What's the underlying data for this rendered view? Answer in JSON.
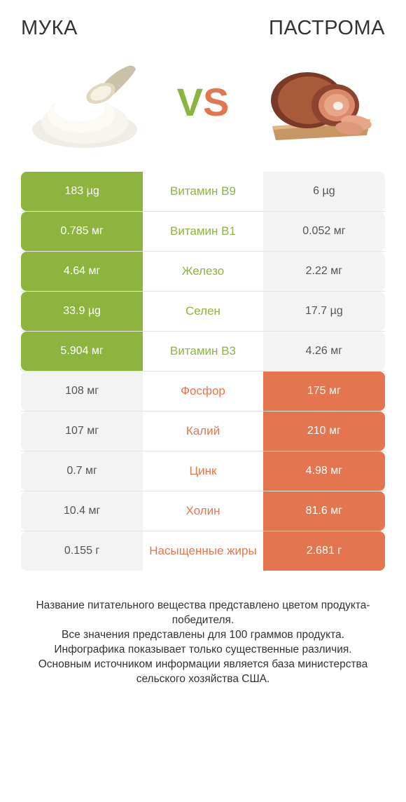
{
  "header": {
    "left_title": "МУКА",
    "right_title": "ПАСТРОМА",
    "vs_v": "V",
    "vs_s": "S"
  },
  "colors": {
    "green": "#8eb440",
    "orange": "#e3764e",
    "green_text": "#8eb440",
    "orange_text": "#e3764e",
    "left_plain": "#f3f3f3",
    "right_plain": "#f3f3f3",
    "plain_text": "#555555",
    "bg": "#ffffff",
    "sep": "#e5e5e5"
  },
  "rows": [
    {
      "left": "183 µg",
      "mid": "Витамин B9",
      "right": "6 µg",
      "winner": "left"
    },
    {
      "left": "0.785 мг",
      "mid": "Витамин B1",
      "right": "0.052 мг",
      "winner": "left"
    },
    {
      "left": "4.64 мг",
      "mid": "Железо",
      "right": "2.22 мг",
      "winner": "left"
    },
    {
      "left": "33.9 µg",
      "mid": "Селен",
      "right": "17.7 µg",
      "winner": "left"
    },
    {
      "left": "5.904 мг",
      "mid": "Витамин B3",
      "right": "4.26 мг",
      "winner": "left"
    },
    {
      "left": "108 мг",
      "mid": "Фосфор",
      "right": "175 мг",
      "winner": "right"
    },
    {
      "left": "107 мг",
      "mid": "Калий",
      "right": "210 мг",
      "winner": "right"
    },
    {
      "left": "0.7 мг",
      "mid": "Цинк",
      "right": "4.98 мг",
      "winner": "right"
    },
    {
      "left": "10.4 мг",
      "mid": "Холин",
      "right": "81.6 мг",
      "winner": "right"
    },
    {
      "left": "0.155 г",
      "mid": "Насыщенные жиры",
      "right": "2.681 г",
      "winner": "right"
    }
  ],
  "footer": {
    "line1": "Название питательного вещества представлено цветом продукта-победителя.",
    "line2": "Все значения представлены для 100 граммов продукта.",
    "line3": "Инфографика показывает только существенные различия.",
    "line4": "Основным источником информации является база министерства сельского хозяйства США."
  }
}
